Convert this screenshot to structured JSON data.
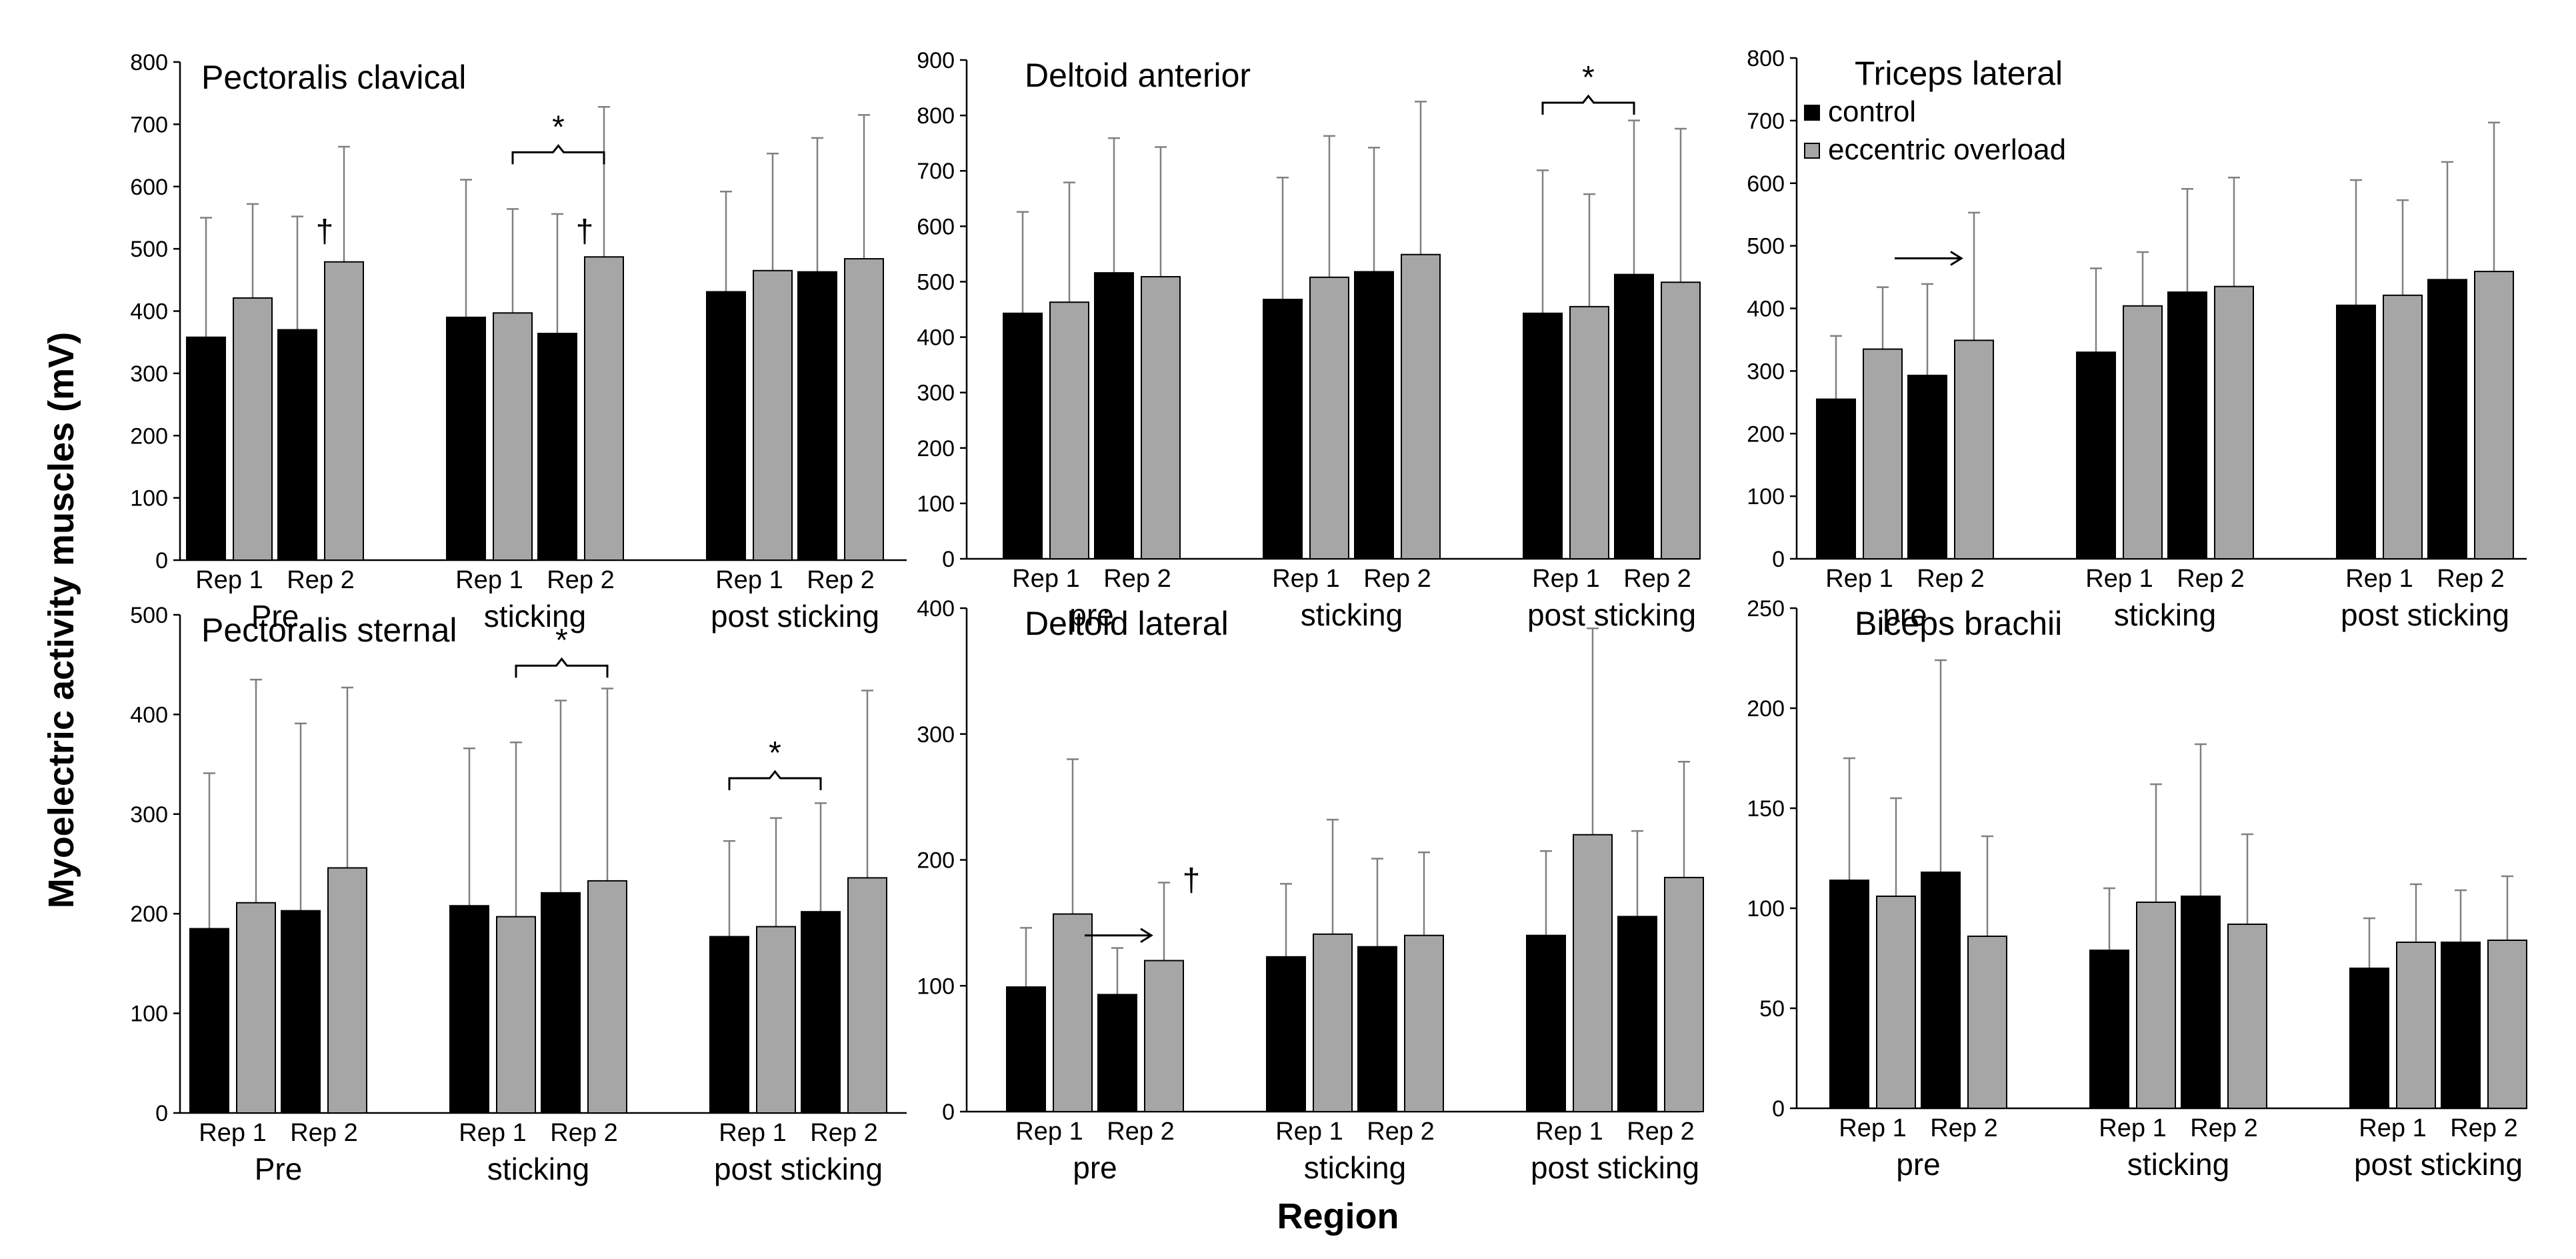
{
  "chart_data": {
    "type": "bar",
    "y_axis_title": "Myoelectric activity muscles (mV)",
    "x_axis_title": "Region",
    "legend": {
      "placement": "top-right panel, upper-left",
      "entries": [
        {
          "name": "control",
          "color": "#000000"
        },
        {
          "name": "eccentric overload",
          "color": "#a6a6a6"
        }
      ]
    },
    "rep_labels": [
      "Rep 1",
      "Rep 2"
    ],
    "panels": [
      {
        "title": "Pectoralis clavical",
        "ylim": [
          0,
          800
        ],
        "yticks": [
          0,
          100,
          200,
          300,
          400,
          500,
          600,
          700,
          800
        ],
        "regions": [
          "Pre",
          "sticking",
          "post sticking"
        ],
        "bars": [
          {
            "group": 0,
            "rep": 1,
            "series": "control",
            "value": 358,
            "err": 550
          },
          {
            "group": 0,
            "rep": 1,
            "series": "eccentric overload",
            "value": 421,
            "err": 572
          },
          {
            "group": 0,
            "rep": 2,
            "series": "control",
            "value": 370,
            "err": 552
          },
          {
            "group": 0,
            "rep": 2,
            "series": "eccentric overload",
            "value": 479,
            "err": 664
          },
          {
            "group": 1,
            "rep": 1,
            "series": "control",
            "value": 390,
            "err": 611
          },
          {
            "group": 1,
            "rep": 1,
            "series": "eccentric overload",
            "value": 397,
            "err": 564
          },
          {
            "group": 1,
            "rep": 2,
            "series": "control",
            "value": 364,
            "err": 556
          },
          {
            "group": 1,
            "rep": 2,
            "series": "eccentric overload",
            "value": 487,
            "err": 728
          },
          {
            "group": 2,
            "rep": 1,
            "series": "control",
            "value": 431,
            "err": 592
          },
          {
            "group": 2,
            "rep": 1,
            "series": "eccentric overload",
            "value": 465,
            "err": 653
          },
          {
            "group": 2,
            "rep": 2,
            "series": "control",
            "value": 463,
            "err": 678
          },
          {
            "group": 2,
            "rep": 2,
            "series": "eccentric overload",
            "value": 484,
            "err": 715
          }
        ],
        "brackets": [
          {
            "from": 5,
            "to": 7,
            "y": 655,
            "label": "*"
          }
        ],
        "marks": [
          {
            "bar": 2,
            "y": 530,
            "label": "†"
          },
          {
            "bar": 6,
            "y": 530,
            "label": "†"
          }
        ],
        "arrows": []
      },
      {
        "title": "Deltoid anterior",
        "ylim": [
          0,
          900
        ],
        "yticks": [
          0,
          100,
          200,
          300,
          400,
          500,
          600,
          700,
          800,
          900
        ],
        "regions": [
          "pre",
          "sticking",
          "post sticking"
        ],
        "bars": [
          {
            "group": 0,
            "rep": 1,
            "series": "control",
            "value": 443,
            "err": 626
          },
          {
            "group": 0,
            "rep": 1,
            "series": "eccentric overload",
            "value": 463,
            "err": 679
          },
          {
            "group": 0,
            "rep": 2,
            "series": "control",
            "value": 516,
            "err": 759
          },
          {
            "group": 0,
            "rep": 2,
            "series": "eccentric overload",
            "value": 509,
            "err": 743
          },
          {
            "group": 1,
            "rep": 1,
            "series": "control",
            "value": 468,
            "err": 688
          },
          {
            "group": 1,
            "rep": 1,
            "series": "eccentric overload",
            "value": 508,
            "err": 763
          },
          {
            "group": 1,
            "rep": 2,
            "series": "control",
            "value": 518,
            "err": 742
          },
          {
            "group": 1,
            "rep": 2,
            "series": "eccentric overload",
            "value": 549,
            "err": 825
          },
          {
            "group": 2,
            "rep": 1,
            "series": "control",
            "value": 443,
            "err": 701
          },
          {
            "group": 2,
            "rep": 1,
            "series": "eccentric overload",
            "value": 455,
            "err": 658
          },
          {
            "group": 2,
            "rep": 2,
            "series": "control",
            "value": 513,
            "err": 791
          },
          {
            "group": 2,
            "rep": 2,
            "series": "eccentric overload",
            "value": 499,
            "err": 776
          }
        ],
        "brackets": [
          {
            "from": 8,
            "to": 10,
            "y": 823,
            "label": "*"
          }
        ],
        "marks": [],
        "arrows": []
      },
      {
        "title": "Triceps lateral",
        "ylim": [
          0,
          800
        ],
        "yticks": [
          0,
          100,
          200,
          300,
          400,
          500,
          600,
          700,
          800
        ],
        "regions": [
          "pre",
          "sticking",
          "post sticking"
        ],
        "bars": [
          {
            "group": 0,
            "rep": 1,
            "series": "control",
            "value": 255,
            "err": 356
          },
          {
            "group": 0,
            "rep": 1,
            "series": "eccentric overload",
            "value": 335,
            "err": 434
          },
          {
            "group": 0,
            "rep": 2,
            "series": "control",
            "value": 293,
            "err": 439
          },
          {
            "group": 0,
            "rep": 2,
            "series": "eccentric overload",
            "value": 349,
            "err": 553
          },
          {
            "group": 1,
            "rep": 1,
            "series": "control",
            "value": 330,
            "err": 464
          },
          {
            "group": 1,
            "rep": 1,
            "series": "eccentric overload",
            "value": 404,
            "err": 490
          },
          {
            "group": 1,
            "rep": 2,
            "series": "control",
            "value": 426,
            "err": 591
          },
          {
            "group": 1,
            "rep": 2,
            "series": "eccentric overload",
            "value": 435,
            "err": 609
          },
          {
            "group": 2,
            "rep": 1,
            "series": "control",
            "value": 405,
            "err": 605
          },
          {
            "group": 2,
            "rep": 1,
            "series": "eccentric overload",
            "value": 421,
            "err": 573
          },
          {
            "group": 2,
            "rep": 2,
            "series": "control",
            "value": 446,
            "err": 634
          },
          {
            "group": 2,
            "rep": 2,
            "series": "eccentric overload",
            "value": 459,
            "err": 697
          }
        ],
        "brackets": [],
        "marks": [],
        "arrows": [
          {
            "from": 2,
            "to": 3,
            "y": 480
          }
        ]
      },
      {
        "title": "Pectoralis sternal",
        "ylim": [
          0,
          500
        ],
        "yticks": [
          0,
          100,
          200,
          300,
          400,
          500
        ],
        "regions": [
          "Pre",
          "sticking",
          "post sticking"
        ],
        "bars": [
          {
            "group": 0,
            "rep": 1,
            "series": "control",
            "value": 185,
            "err": 341
          },
          {
            "group": 0,
            "rep": 1,
            "series": "eccentric overload",
            "value": 211,
            "err": 435
          },
          {
            "group": 0,
            "rep": 2,
            "series": "control",
            "value": 203,
            "err": 391
          },
          {
            "group": 0,
            "rep": 2,
            "series": "eccentric overload",
            "value": 246,
            "err": 427
          },
          {
            "group": 1,
            "rep": 1,
            "series": "control",
            "value": 208,
            "err": 366
          },
          {
            "group": 1,
            "rep": 1,
            "series": "eccentric overload",
            "value": 197,
            "err": 372
          },
          {
            "group": 1,
            "rep": 2,
            "series": "control",
            "value": 221,
            "err": 414
          },
          {
            "group": 1,
            "rep": 2,
            "series": "eccentric overload",
            "value": 233,
            "err": 426
          },
          {
            "group": 2,
            "rep": 1,
            "series": "control",
            "value": 177,
            "err": 273
          },
          {
            "group": 2,
            "rep": 1,
            "series": "eccentric overload",
            "value": 187,
            "err": 296
          },
          {
            "group": 2,
            "rep": 2,
            "series": "control",
            "value": 202,
            "err": 311
          },
          {
            "group": 2,
            "rep": 2,
            "series": "eccentric overload",
            "value": 236,
            "err": 424
          }
        ],
        "brackets": [
          {
            "from": 5,
            "to": 7,
            "y": 449,
            "label": "*"
          },
          {
            "from": 8,
            "to": 10,
            "y": 336,
            "label": "*"
          }
        ],
        "marks": [],
        "arrows": []
      },
      {
        "title": "Deltoid lateral",
        "ylim": [
          0,
          400
        ],
        "yticks": [
          0,
          100,
          200,
          300,
          400
        ],
        "regions": [
          "pre",
          "sticking",
          "post sticking"
        ],
        "bars": [
          {
            "group": 0,
            "rep": 1,
            "series": "control",
            "value": 99,
            "err": 146
          },
          {
            "group": 0,
            "rep": 1,
            "series": "eccentric overload",
            "value": 157,
            "err": 280
          },
          {
            "group": 0,
            "rep": 2,
            "series": "control",
            "value": 93,
            "err": 130
          },
          {
            "group": 0,
            "rep": 2,
            "series": "eccentric overload",
            "value": 120,
            "err": 182
          },
          {
            "group": 1,
            "rep": 1,
            "series": "control",
            "value": 123,
            "err": 181
          },
          {
            "group": 1,
            "rep": 1,
            "series": "eccentric overload",
            "value": 141,
            "err": 232
          },
          {
            "group": 1,
            "rep": 2,
            "series": "control",
            "value": 131,
            "err": 201
          },
          {
            "group": 1,
            "rep": 2,
            "series": "eccentric overload",
            "value": 140,
            "err": 206
          },
          {
            "group": 2,
            "rep": 1,
            "series": "control",
            "value": 140,
            "err": 207
          },
          {
            "group": 2,
            "rep": 1,
            "series": "eccentric overload",
            "value": 220,
            "err": 384
          },
          {
            "group": 2,
            "rep": 2,
            "series": "control",
            "value": 155,
            "err": 223
          },
          {
            "group": 2,
            "rep": 2,
            "series": "eccentric overload",
            "value": 186,
            "err": 278
          }
        ],
        "brackets": [],
        "marks": [
          {
            "bar": 3,
            "y": 185,
            "label": "†"
          }
        ],
        "arrows": [
          {
            "from": 2,
            "to": 3,
            "y": 140
          }
        ]
      },
      {
        "title": "Biceps brachii",
        "ylim": [
          0,
          250
        ],
        "yticks": [
          0,
          50,
          100,
          150,
          200,
          250
        ],
        "regions": [
          "pre",
          "sticking",
          "post sticking"
        ],
        "bars": [
          {
            "group": 0,
            "rep": 1,
            "series": "control",
            "value": 114,
            "err": 175
          },
          {
            "group": 0,
            "rep": 1,
            "series": "eccentric overload",
            "value": 106,
            "err": 155
          },
          {
            "group": 0,
            "rep": 2,
            "series": "control",
            "value": 118,
            "err": 224
          },
          {
            "group": 0,
            "rep": 2,
            "series": "eccentric overload",
            "value": 86,
            "err": 136
          },
          {
            "group": 1,
            "rep": 1,
            "series": "control",
            "value": 79,
            "err": 110
          },
          {
            "group": 1,
            "rep": 1,
            "series": "eccentric overload",
            "value": 103,
            "err": 162
          },
          {
            "group": 1,
            "rep": 2,
            "series": "control",
            "value": 106,
            "err": 182
          },
          {
            "group": 1,
            "rep": 2,
            "series": "eccentric overload",
            "value": 92,
            "err": 137
          },
          {
            "group": 2,
            "rep": 1,
            "series": "control",
            "value": 70,
            "err": 95
          },
          {
            "group": 2,
            "rep": 1,
            "series": "eccentric overload",
            "value": 83,
            "err": 112
          },
          {
            "group": 2,
            "rep": 2,
            "series": "control",
            "value": 83,
            "err": 109
          },
          {
            "group": 2,
            "rep": 2,
            "series": "eccentric overload",
            "value": 84,
            "err": 116
          }
        ],
        "brackets": [],
        "marks": [],
        "arrows": []
      }
    ]
  }
}
